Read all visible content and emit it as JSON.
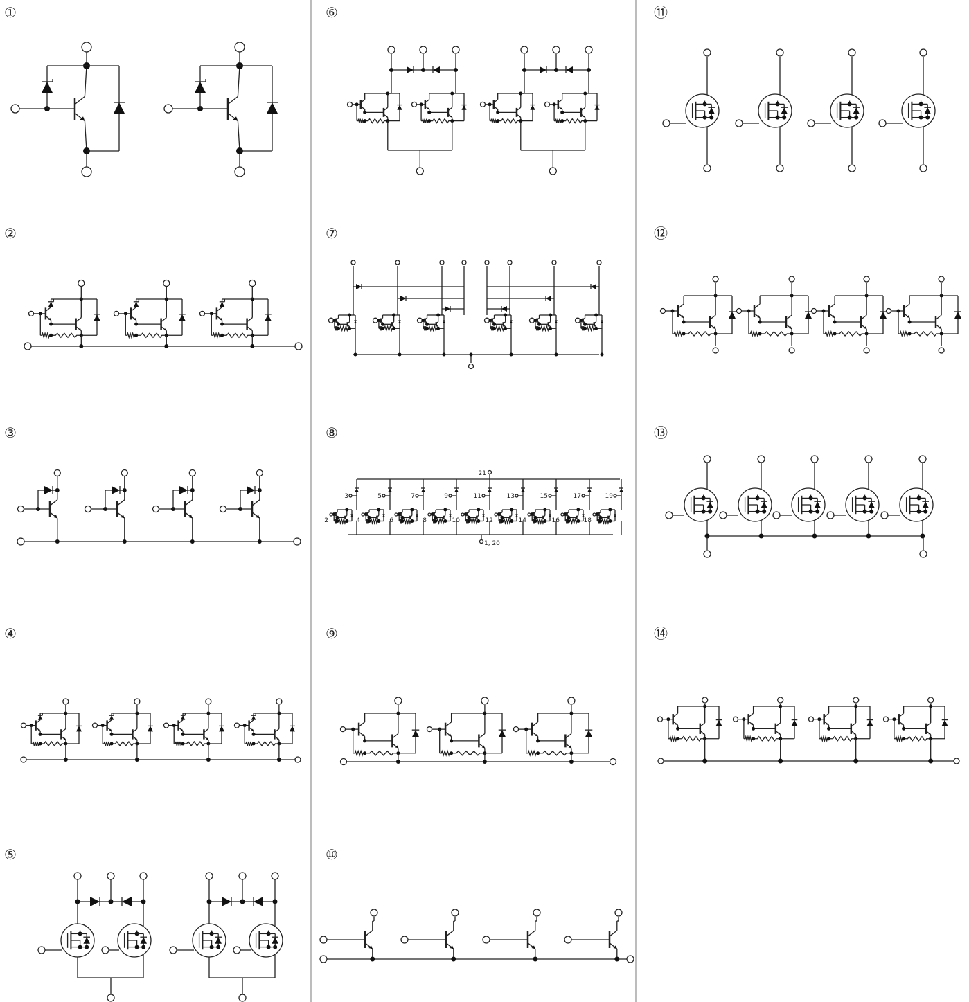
{
  "panels": [
    {
      "label": "①"
    },
    {
      "label": "②"
    },
    {
      "label": "③"
    },
    {
      "label": "④"
    },
    {
      "label": "⑤"
    },
    {
      "label": "⑥"
    },
    {
      "label": "⑦"
    },
    {
      "label": "⑧"
    },
    {
      "label": "⑨"
    },
    {
      "label": "⑩"
    },
    {
      "label": "⑪"
    },
    {
      "label": "⑫"
    },
    {
      "label": "⑬"
    },
    {
      "label": "⑭"
    }
  ],
  "pin_labels": {
    "top": "21",
    "upper": [
      "3",
      "5",
      "7",
      "9",
      "11",
      "13",
      "15",
      "17",
      "19"
    ],
    "lower": [
      "2",
      "4",
      "6",
      "8",
      "10",
      "12",
      "14",
      "16",
      "18"
    ],
    "bottom": "1, 20"
  }
}
